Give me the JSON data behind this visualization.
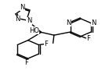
{
  "bg": "#ffffff",
  "lc": "#000000",
  "lw": 1.0,
  "fs": 6.0,
  "xlim": [
    0,
    1.1
  ],
  "ylim": [
    0,
    1.0
  ]
}
